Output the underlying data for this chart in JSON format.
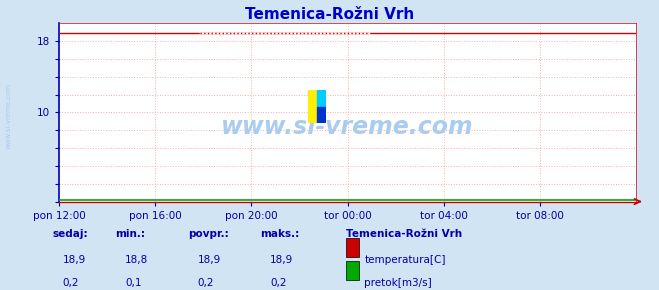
{
  "title": "Temenica-Rožni Vrh",
  "title_color": "#0000cc",
  "bg_color": "#d0e4f4",
  "plot_bg_color": "#ffffff",
  "grid_color": "#ffaaaa",
  "x_ticks_labels": [
    "pon 12:00",
    "pon 16:00",
    "pon 20:00",
    "tor 00:00",
    "tor 04:00",
    "tor 08:00"
  ],
  "x_ticks_pos": [
    0.0,
    0.1667,
    0.3333,
    0.5,
    0.6667,
    0.8333
  ],
  "ylim": [
    0,
    20
  ],
  "xlim": [
    0,
    1
  ],
  "temp_value": 18.9,
  "flow_value": 0.2,
  "temp_color": "#cc0000",
  "flow_color": "#00aa00",
  "watermark_color": "#aaccee",
  "sidebar_text_color": "#0000aa",
  "tick_label_color": "#0000aa",
  "left_spine_color": "#0000bb",
  "stat_labels": [
    "sedaj:",
    "min.:",
    "povpr.:",
    "maks.:"
  ],
  "stat_temp": [
    "18,9",
    "18,8",
    "18,9",
    "18,9"
  ],
  "stat_flow": [
    "0,2",
    "0,1",
    "0,2",
    "0,2"
  ],
  "legend_title": "Temenica-Rožni Vrh",
  "legend_temp_label": "temperatura[C]",
  "legend_flow_label": "pretok[m3/s]",
  "left_label": "www.si-vreme.com"
}
